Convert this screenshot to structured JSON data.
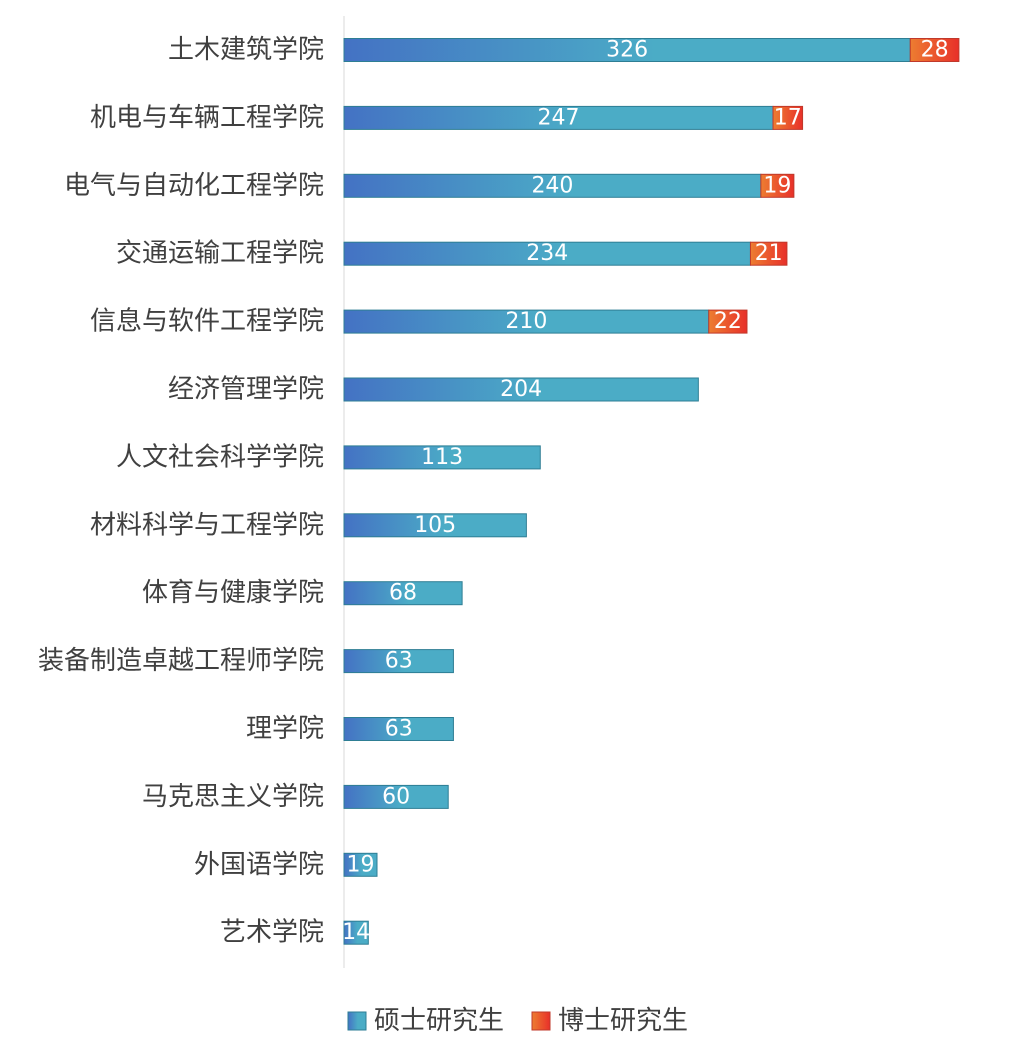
{
  "chart_data": {
    "type": "bar",
    "orientation": "horizontal",
    "stacked": true,
    "title": "",
    "xlabel": "",
    "ylabel": "",
    "grid": false,
    "legend_position": "bottom",
    "categories": [
      "土木建筑学院",
      "机电与车辆工程学院",
      "电气与自动化工程学院",
      "交通运输工程学院",
      "信息与软件工程学院",
      "经济管理学院",
      "人文社会科学学院",
      "材料科学与工程学院",
      "体育与健康学院",
      "装备制造卓越工程师学院",
      "理学院",
      "马克思主义学院",
      "外国语学院",
      "艺术学院"
    ],
    "series": [
      {
        "name": "硕士研究生",
        "color_start": "#4472C4",
        "color_end": "#4BACC6",
        "values": [
          326,
          247,
          240,
          234,
          210,
          204,
          113,
          105,
          68,
          63,
          63,
          60,
          19,
          14
        ]
      },
      {
        "name": "博士研究生",
        "color_start": "#ED7D31",
        "color_end": "#E8302A",
        "values": [
          28,
          17,
          19,
          21,
          22,
          null,
          null,
          null,
          null,
          null,
          null,
          null,
          null,
          null
        ]
      }
    ]
  }
}
